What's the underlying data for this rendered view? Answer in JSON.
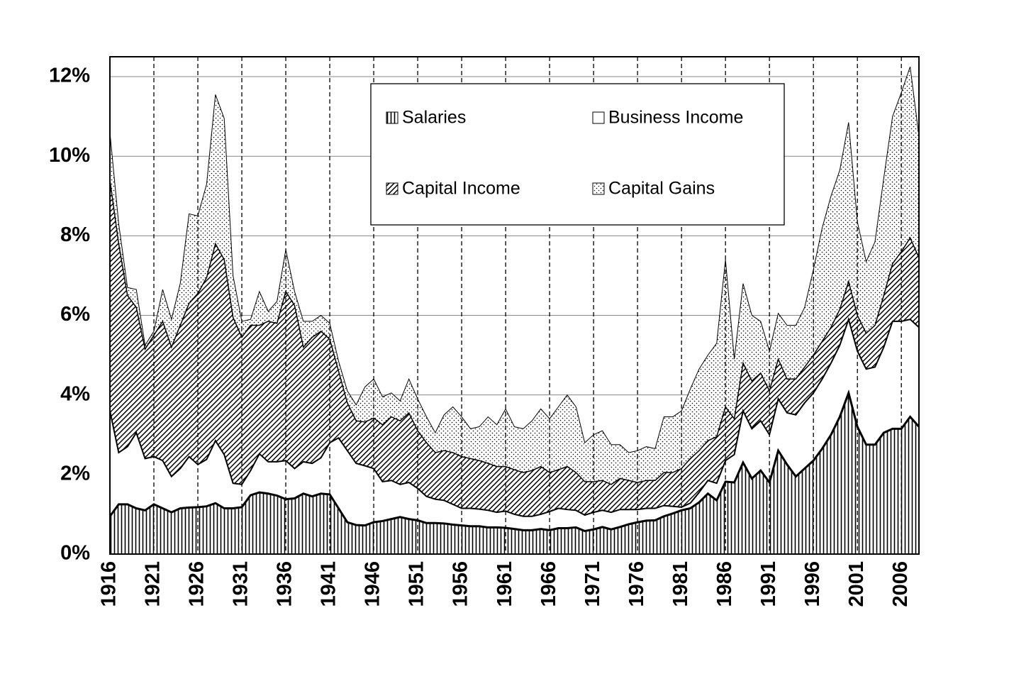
{
  "chart_data": {
    "type": "stacked-area",
    "x": [
      1916,
      1917,
      1918,
      1919,
      1920,
      1921,
      1922,
      1923,
      1924,
      1925,
      1926,
      1927,
      1928,
      1929,
      1930,
      1931,
      1932,
      1933,
      1934,
      1935,
      1936,
      1937,
      1938,
      1939,
      1940,
      1941,
      1942,
      1943,
      1944,
      1945,
      1946,
      1947,
      1948,
      1949,
      1950,
      1951,
      1952,
      1953,
      1954,
      1955,
      1956,
      1957,
      1958,
      1959,
      1960,
      1961,
      1962,
      1963,
      1964,
      1965,
      1966,
      1967,
      1968,
      1969,
      1970,
      1971,
      1972,
      1973,
      1974,
      1975,
      1976,
      1977,
      1978,
      1979,
      1980,
      1981,
      1982,
      1983,
      1984,
      1985,
      1986,
      1987,
      1988,
      1989,
      1990,
      1991,
      1992,
      1993,
      1994,
      1995,
      1996,
      1997,
      1998,
      1999,
      2000,
      2001,
      2002,
      2003,
      2004,
      2005,
      2006,
      2007,
      2008
    ],
    "xlim": [
      1916,
      2008
    ],
    "xticks": [
      1916,
      1921,
      1926,
      1931,
      1936,
      1941,
      1946,
      1951,
      1956,
      1961,
      1966,
      1971,
      1976,
      1981,
      1986,
      1991,
      1996,
      2001,
      2006
    ],
    "ylim": [
      0,
      12.5
    ],
    "yticks": [
      {
        "value": 0,
        "label": "0%"
      },
      {
        "value": 2,
        "label": "2%"
      },
      {
        "value": 4,
        "label": "4%"
      },
      {
        "value": 6,
        "label": "6%"
      },
      {
        "value": 8,
        "label": "8%"
      },
      {
        "value": 10,
        "label": "10%"
      },
      {
        "value": 12,
        "label": "12%"
      }
    ],
    "grid": true,
    "legend": "top-center",
    "series": [
      {
        "name": "Salaries",
        "pattern": "vertical-lines",
        "values": [
          0.95,
          1.25,
          1.25,
          1.15,
          1.1,
          1.25,
          1.15,
          1.05,
          1.15,
          1.17,
          1.18,
          1.2,
          1.28,
          1.15,
          1.15,
          1.18,
          1.48,
          1.55,
          1.52,
          1.47,
          1.38,
          1.4,
          1.52,
          1.45,
          1.52,
          1.5,
          1.15,
          0.8,
          0.73,
          0.72,
          0.8,
          0.83,
          0.88,
          0.93,
          0.88,
          0.85,
          0.78,
          0.78,
          0.77,
          0.74,
          0.72,
          0.7,
          0.7,
          0.67,
          0.67,
          0.66,
          0.63,
          0.6,
          0.6,
          0.63,
          0.6,
          0.65,
          0.65,
          0.67,
          0.58,
          0.62,
          0.68,
          0.62,
          0.68,
          0.75,
          0.8,
          0.84,
          0.85,
          0.95,
          1.02,
          1.1,
          1.15,
          1.3,
          1.52,
          1.35,
          1.82,
          1.8,
          2.3,
          1.9,
          2.1,
          1.8,
          2.6,
          2.25,
          1.95,
          2.15,
          2.35,
          2.65,
          3.0,
          3.45,
          4.05,
          3.2,
          2.75,
          2.75,
          3.05,
          3.15,
          3.15,
          3.45,
          3.2
        ]
      },
      {
        "name": "Business Income",
        "pattern": "none",
        "values": [
          2.65,
          1.3,
          1.45,
          1.9,
          1.3,
          1.2,
          1.2,
          0.9,
          1.0,
          1.28,
          1.07,
          1.18,
          1.57,
          1.35,
          0.63,
          0.57,
          0.62,
          0.97,
          0.8,
          0.85,
          0.97,
          0.75,
          0.8,
          0.83,
          0.9,
          1.3,
          1.77,
          1.8,
          1.55,
          1.5,
          1.35,
          0.99,
          0.97,
          0.82,
          0.92,
          0.8,
          0.67,
          0.6,
          0.58,
          0.51,
          0.43,
          0.45,
          0.43,
          0.43,
          0.38,
          0.42,
          0.37,
          0.35,
          0.35,
          0.37,
          0.47,
          0.5,
          0.47,
          0.43,
          0.4,
          0.43,
          0.42,
          0.43,
          0.44,
          0.37,
          0.32,
          0.31,
          0.3,
          0.27,
          0.18,
          0.08,
          0.13,
          0.25,
          0.33,
          0.43,
          0.53,
          0.7,
          1.3,
          1.25,
          1.25,
          1.2,
          1.3,
          1.3,
          1.55,
          1.65,
          1.7,
          1.75,
          1.8,
          1.8,
          1.85,
          1.9,
          1.9,
          1.95,
          2.15,
          2.7,
          2.7,
          2.45,
          2.5
        ]
      },
      {
        "name": "Capital Income",
        "pattern": "diagonal",
        "values": [
          5.8,
          5.25,
          3.8,
          3.15,
          2.75,
          3.05,
          3.5,
          3.25,
          3.6,
          3.85,
          4.3,
          4.57,
          4.95,
          4.9,
          4.17,
          3.7,
          3.65,
          3.23,
          3.53,
          3.48,
          4.25,
          4.1,
          2.88,
          3.17,
          3.18,
          2.6,
          1.68,
          1.2,
          1.07,
          1.1,
          1.27,
          1.43,
          1.6,
          1.6,
          1.75,
          1.45,
          1.35,
          1.17,
          1.25,
          1.3,
          1.3,
          1.25,
          1.22,
          1.18,
          1.15,
          1.12,
          1.12,
          1.1,
          1.15,
          1.2,
          0.98,
          0.97,
          1.08,
          0.95,
          0.84,
          0.77,
          0.75,
          0.7,
          0.78,
          0.73,
          0.68,
          0.7,
          0.7,
          0.83,
          0.85,
          0.97,
          1.12,
          1.05,
          1.0,
          1.17,
          1.35,
          0.9,
          1.2,
          1.2,
          1.2,
          1.1,
          1.0,
          0.85,
          0.9,
          0.9,
          0.95,
          0.95,
          0.9,
          0.9,
          0.95,
          0.9,
          0.9,
          1.05,
          1.3,
          1.45,
          1.75,
          2.05,
          1.75
        ]
      },
      {
        "name": "Capital Gains",
        "pattern": "dots",
        "values": [
          1.2,
          0.5,
          0.2,
          0.45,
          0.1,
          0.1,
          0.8,
          0.7,
          1.05,
          2.25,
          1.95,
          2.35,
          3.75,
          3.55,
          1.05,
          0.4,
          0.15,
          0.85,
          0.25,
          0.55,
          1.05,
          0.35,
          0.65,
          0.4,
          0.4,
          0.4,
          0.25,
          0.3,
          0.4,
          0.88,
          0.98,
          0.7,
          0.6,
          0.5,
          0.85,
          0.8,
          0.65,
          0.5,
          0.9,
          1.15,
          1.0,
          0.75,
          0.85,
          1.17,
          1.05,
          1.45,
          1.08,
          1.1,
          1.25,
          1.45,
          1.35,
          1.58,
          1.8,
          1.65,
          0.98,
          1.18,
          1.25,
          1.0,
          0.85,
          0.7,
          0.8,
          0.85,
          0.8,
          1.4,
          1.4,
          1.45,
          1.75,
          2.05,
          2.15,
          2.35,
          3.7,
          1.5,
          2.0,
          1.65,
          1.3,
          1.0,
          1.15,
          1.35,
          1.35,
          1.5,
          2.15,
          2.85,
          3.3,
          3.5,
          4.0,
          2.35,
          1.8,
          2.1,
          2.95,
          3.7,
          4.0,
          4.3,
          3.05
        ]
      }
    ]
  }
}
